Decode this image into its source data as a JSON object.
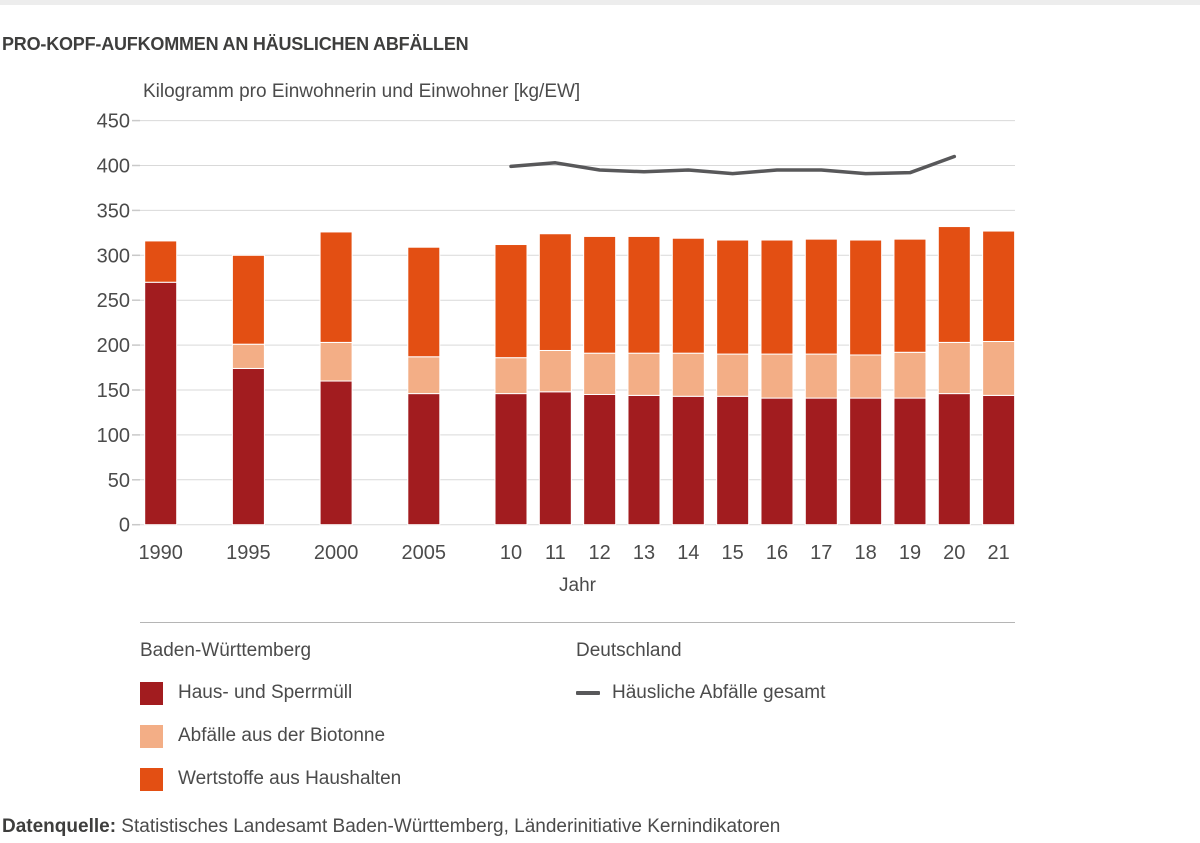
{
  "page": {
    "source_label": "Datenquelle:",
    "source_text": " Statistisches Landesamt Baden-Württemberg, Länderinitiative Kernindikatoren"
  },
  "colors": {
    "grid": "#D9D9D9",
    "tick": "#C9C9C9",
    "axis_text": "#4B4B4B",
    "title_text": "#3E3E3D",
    "separator": "#B5B5B5",
    "top_strip": "#EDEDED",
    "segment_border": "#FFFFFF"
  },
  "chart_data": {
    "type": "bar",
    "stacked": true,
    "title": "PRO-KOPF-AUFKOMMEN AN HÄUSLICHEN ABFÄLLEN",
    "ylabel": "Kilogramm pro Einwohnerin und Einwohner [kg/EW]",
    "xlabel": "Jahr",
    "ylim": [
      0,
      450
    ],
    "yticks": [
      0,
      50,
      100,
      150,
      200,
      250,
      300,
      350,
      400,
      450
    ],
    "grid": true,
    "legend_position": "bottom",
    "categories": [
      "1990",
      "1995",
      "2000",
      "2005",
      "10",
      "11",
      "12",
      "13",
      "14",
      "15",
      "16",
      "17",
      "18",
      "19",
      "20",
      "21"
    ],
    "series": [
      {
        "name": "Haus- und Sperrmüll",
        "color": "#A21C1F",
        "values": [
          270,
          174,
          160,
          146,
          146,
          148,
          145,
          144,
          143,
          143,
          141,
          141,
          141,
          141,
          146,
          144
        ]
      },
      {
        "name": "Abfälle aus der Biotonne",
        "color": "#F3AE86",
        "values": [
          0,
          27,
          43,
          41,
          40,
          46,
          46,
          47,
          48,
          47,
          49,
          49,
          48,
          51,
          57,
          60
        ]
      },
      {
        "name": "Wertstoffe aus Haushalten",
        "color": "#E34F13",
        "values": [
          46,
          99,
          123,
          122,
          126,
          130,
          130,
          130,
          128,
          127,
          127,
          128,
          128,
          126,
          129,
          123
        ]
      }
    ],
    "line_series": {
      "name": "Häusliche Abfälle gesamt",
      "region": "Deutschland",
      "color": "#58585A",
      "x": [
        "10",
        "11",
        "12",
        "13",
        "14",
        "15",
        "16",
        "17",
        "18",
        "19",
        "20"
      ],
      "values": [
        399,
        403,
        395,
        393,
        395,
        391,
        395,
        395,
        391,
        392,
        410
      ]
    },
    "legend": {
      "left_header": "Baden-Württemberg",
      "right_header": "Deutschland"
    }
  }
}
